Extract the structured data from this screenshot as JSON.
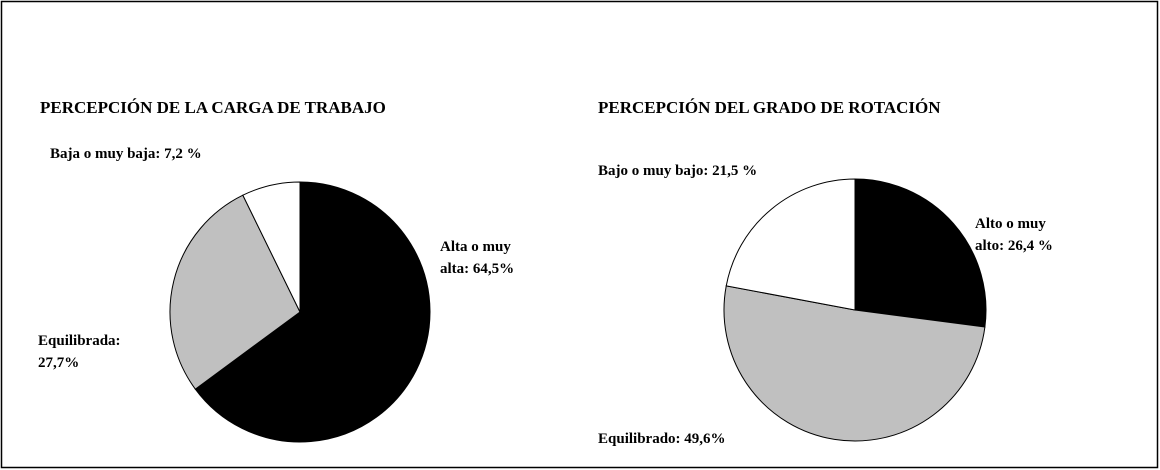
{
  "chart_data": [
    {
      "type": "pie",
      "title": "PERCEPCIÓN DE LA CARGA DE TRABAJO",
      "values": [
        64.5,
        27.7,
        7.2
      ],
      "value_labels": [
        "Alta o muy\nalta: 64,5%",
        "Equilibrada:\n27,7%",
        "Baja o muy baja: 7,2 %"
      ],
      "colors": [
        "#000000",
        "#c0c0c0",
        "#ffffff"
      ]
    },
    {
      "type": "pie",
      "title": "PERCEPCIÓN DEL GRADO DE ROTACIÓN",
      "values": [
        26.4,
        49.6,
        21.5
      ],
      "value_labels": [
        "Alto o muy\nalto: 26,4 %",
        "Equilibrado: 49,6%",
        "Bajo o muy bajo: 21,5 %"
      ],
      "colors": [
        "#000000",
        "#c0c0c0",
        "#ffffff"
      ]
    }
  ]
}
